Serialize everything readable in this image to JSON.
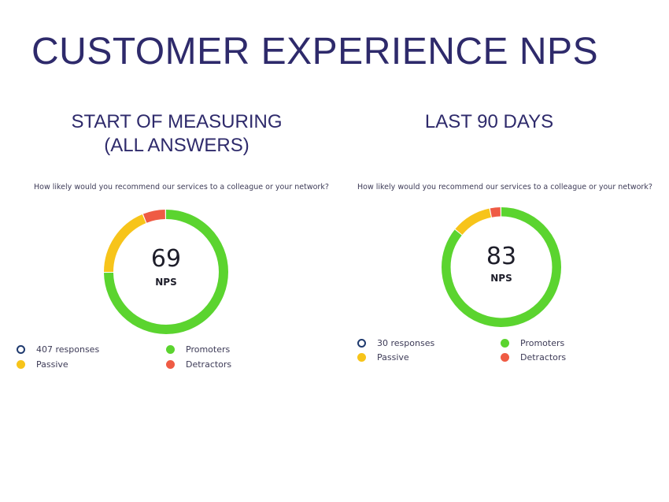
{
  "page": {
    "title": "CUSTOMER EXPERIENCE NPS"
  },
  "colors": {
    "promoters": "#5bd42f",
    "passive": "#f7c41a",
    "detractors": "#ef5b44",
    "responses": "#1f3a6e"
  },
  "panels": [
    {
      "title_lines": [
        "START OF MEASURING",
        "(ALL ANSWERS)"
      ],
      "question": "How likely would you recommend our services to a colleague or your network?",
      "nps_value": "69",
      "nps_label": "NPS",
      "legend": {
        "responses": "407 responses",
        "promoters": "Promoters",
        "passive": "Passive",
        "detractors": "Detractors"
      }
    },
    {
      "title_lines": [
        "LAST 90 DAYS"
      ],
      "question": "How likely would you recommend our services to a colleague or your network?",
      "nps_value": "83",
      "nps_label": "NPS",
      "legend": {
        "responses": "30 responses",
        "promoters": "Promoters",
        "passive": "Passive",
        "detractors": "Detractors"
      }
    }
  ],
  "chart_data": [
    {
      "type": "pie",
      "subtype": "donut",
      "title": "START OF MEASURING (ALL ANSWERS)",
      "center_value": 69,
      "total_responses": 407,
      "categories": [
        "Promoters",
        "Passive",
        "Detractors"
      ],
      "values": [
        75,
        19,
        6
      ]
    },
    {
      "type": "pie",
      "subtype": "donut",
      "title": "LAST 90 DAYS",
      "center_value": 83,
      "total_responses": 30,
      "categories": [
        "Promoters",
        "Passive",
        "Detractors"
      ],
      "values": [
        86,
        11,
        3
      ]
    }
  ]
}
